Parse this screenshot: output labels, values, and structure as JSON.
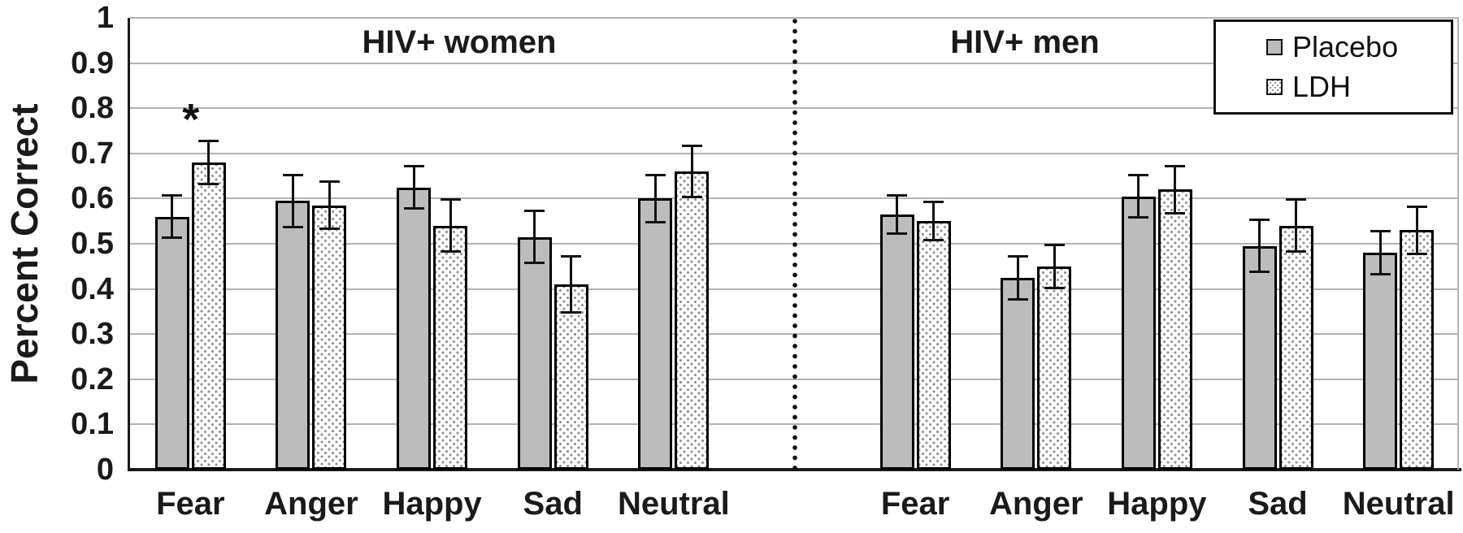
{
  "figure": {
    "background": "#ffffff"
  },
  "legend": {
    "items": [
      {
        "label": "Placebo",
        "swatch": "solid-gray-square"
      },
      {
        "label": "LDH",
        "swatch": "dotted-square"
      }
    ]
  },
  "colors": {
    "placebo_fill": "#bcbcbc",
    "ldh_fill": "#ffffff",
    "ldh_dot": "#8f8f8f",
    "bar_border": "#000000",
    "gridline": "#b3b3b3",
    "axis": "#1a1a1a",
    "text": "#1a1a1a"
  },
  "chart_data": {
    "type": "bar",
    "title": "",
    "xlabel": "",
    "ylabel": "Percent Correct",
    "ylim": [
      0,
      1
    ],
    "y_ticks": [
      0,
      0.1,
      0.2,
      0.3,
      0.4,
      0.5,
      0.6,
      0.7,
      0.8,
      0.9,
      1
    ],
    "y_tick_labels": [
      "0",
      "0.1",
      "0.2",
      "0.3",
      "0.4",
      "0.5",
      "0.6",
      "0.7",
      "0.8",
      "0.9",
      "1"
    ],
    "grid": true,
    "legend_position": "top-right",
    "categories": [
      "Fear",
      "Anger",
      "Happy",
      "Sad",
      "Neutral"
    ],
    "panels": [
      {
        "title": "HIV+ women",
        "series": [
          {
            "name": "Placebo",
            "values": [
              0.56,
              0.595,
              0.625,
              0.515,
              0.6
            ],
            "errors": [
              0.05,
              0.06,
              0.05,
              0.06,
              0.055
            ]
          },
          {
            "name": "LDH",
            "values": [
              0.68,
              0.585,
              0.54,
              0.41,
              0.66
            ],
            "errors": [
              0.05,
              0.055,
              0.06,
              0.065,
              0.06
            ]
          }
        ],
        "significance": [
          {
            "category": "Fear",
            "series": "LDH",
            "marker": "*"
          }
        ]
      },
      {
        "title": "HIV+ men",
        "series": [
          {
            "name": "Placebo",
            "values": [
              0.565,
              0.425,
              0.605,
              0.495,
              0.48
            ],
            "errors": [
              0.045,
              0.05,
              0.05,
              0.06,
              0.05
            ]
          },
          {
            "name": "LDH",
            "values": [
              0.55,
              0.45,
              0.62,
              0.54,
              0.53
            ],
            "errors": [
              0.045,
              0.05,
              0.055,
              0.06,
              0.055
            ]
          }
        ],
        "significance": []
      }
    ]
  }
}
